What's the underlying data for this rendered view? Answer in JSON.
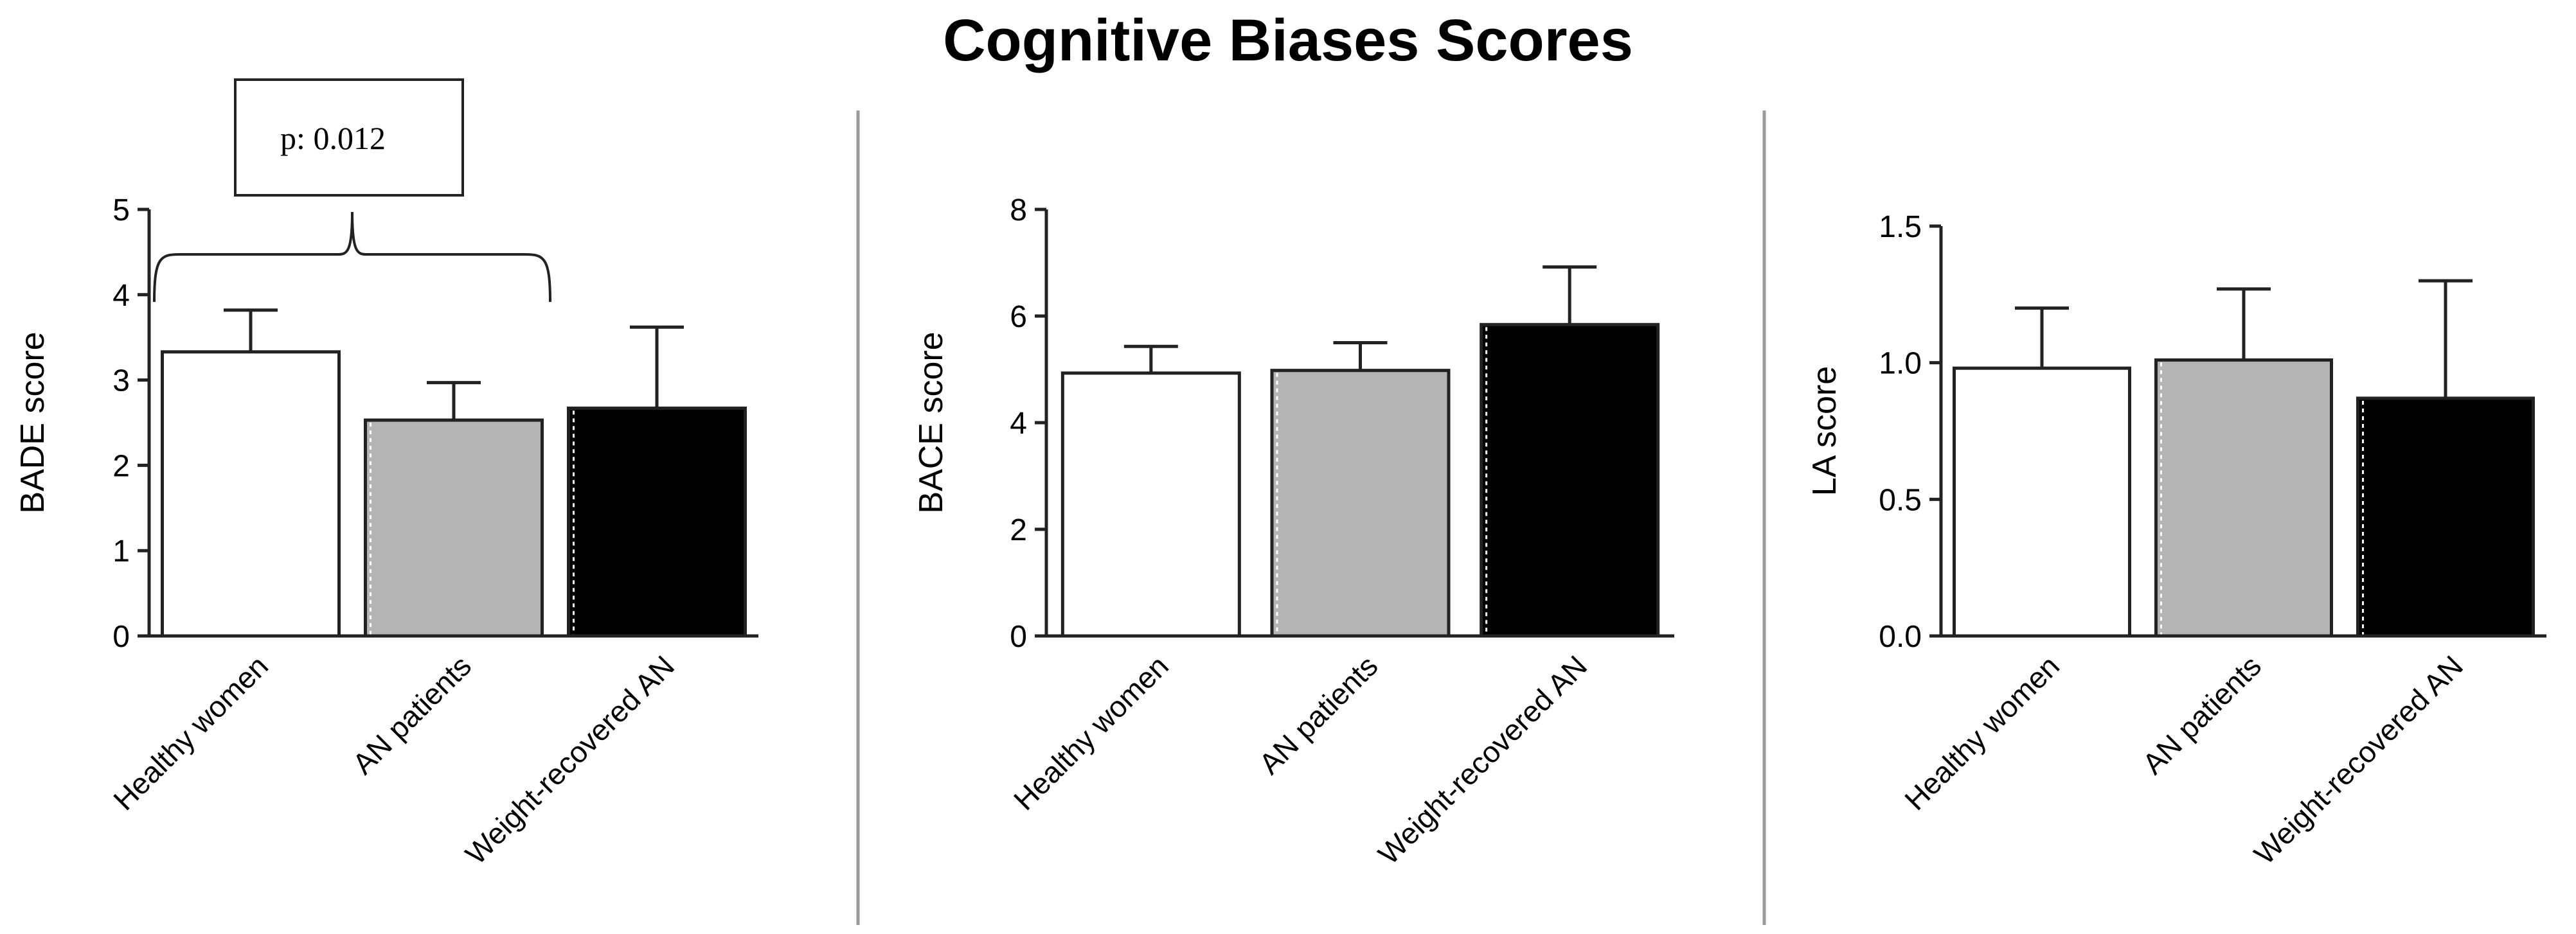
{
  "title": "Cognitive Biases Scores",
  "colors": {
    "axis": "#222222",
    "divider": "#9a9a9a",
    "group_fills": [
      "#ffffff",
      "#b4b4b4",
      "#000000"
    ]
  },
  "chart_data": [
    {
      "type": "bar",
      "categories": [
        "Healthy women",
        "AN patients",
        "Weight-recovered AN"
      ],
      "values": [
        3.33,
        2.53,
        2.67
      ],
      "error_bars": [
        0.49,
        0.44,
        0.95
      ],
      "ylabel": "BADE score",
      "xlabel": "",
      "ylim": [
        0,
        5
      ],
      "yticks": [
        "0",
        "1",
        "2",
        "3",
        "4",
        "5"
      ],
      "grid": false,
      "annotation": {
        "text": "p: 0.012",
        "compares": [
          "Healthy women",
          "AN patients"
        ]
      }
    },
    {
      "type": "bar",
      "categories": [
        "Healthy women",
        "AN patients",
        "Weight-recovered AN"
      ],
      "values": [
        4.93,
        4.98,
        5.84
      ],
      "error_bars": [
        0.5,
        0.52,
        1.08
      ],
      "ylabel": "BACE score",
      "xlabel": "",
      "ylim": [
        0,
        8
      ],
      "yticks": [
        "0",
        "2",
        "4",
        "6",
        "8"
      ],
      "grid": false
    },
    {
      "type": "bar",
      "categories": [
        "Healthy women",
        "AN patients",
        "Weight-recovered AN"
      ],
      "values": [
        0.98,
        1.01,
        0.87
      ],
      "error_bars": [
        0.22,
        0.26,
        0.43
      ],
      "ylabel": "LA score",
      "xlabel": "",
      "ylim": [
        0,
        1.5
      ],
      "yticks": [
        "0.0",
        "0.5",
        "1.0",
        "1.5"
      ],
      "grid": false
    }
  ]
}
